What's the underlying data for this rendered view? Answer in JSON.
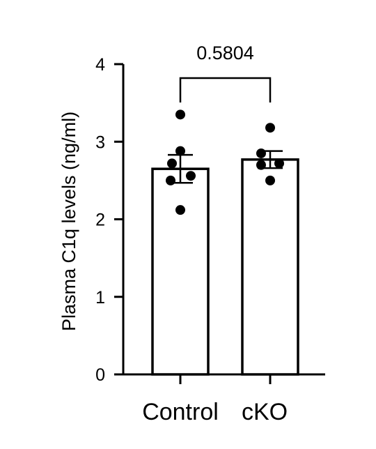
{
  "chart_data": {
    "type": "bar",
    "title": "",
    "xlabel": "",
    "ylabel": "Plasma C1q levels (ng/ml)",
    "ylim": [
      0,
      4
    ],
    "yticks": [
      0,
      1,
      2,
      3,
      4
    ],
    "categories": [
      "Control",
      "cKO"
    ],
    "values": [
      2.65,
      2.77
    ],
    "sem": [
      0.18,
      0.11
    ],
    "points": [
      [
        3.35,
        2.88,
        2.72,
        2.56,
        2.5,
        2.12
      ],
      [
        3.18,
        2.85,
        2.72,
        2.7,
        2.5
      ]
    ],
    "comparison": {
      "between": [
        "Control",
        "cKO"
      ],
      "p_value": "0.5804"
    },
    "grid": false,
    "legend": "none"
  }
}
